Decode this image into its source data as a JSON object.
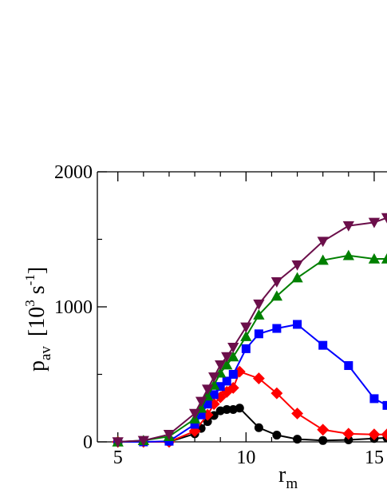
{
  "chart_data": {
    "type": "line",
    "xlabel": {
      "main": "r",
      "sub": "m"
    },
    "ylabel": {
      "main": "p",
      "sub": "av",
      "unit_open": "[10",
      "unit_exp": "3",
      "unit_mid": " s",
      "unit_exp2": "-1",
      "unit_close": "]"
    },
    "xlim": [
      4.2,
      15.5
    ],
    "ylim": [
      0,
      2000
    ],
    "x_ticks": [
      5,
      10,
      15
    ],
    "x_tick_labels": [
      "5",
      "10",
      "15"
    ],
    "y_ticks": [
      0,
      1000,
      2000
    ],
    "y_tick_labels": [
      "0",
      "1000",
      "2000"
    ],
    "grid": false,
    "series": [
      {
        "color": "#000000",
        "marker": "circle",
        "points": [
          [
            5,
            0
          ],
          [
            6,
            0
          ],
          [
            7,
            0
          ],
          [
            8,
            60
          ],
          [
            8.25,
            100
          ],
          [
            8.5,
            150
          ],
          [
            8.75,
            195
          ],
          [
            9,
            230
          ],
          [
            9.25,
            240
          ],
          [
            9.5,
            240
          ],
          [
            9.75,
            250
          ],
          [
            10.5,
            105
          ],
          [
            11.2,
            50
          ],
          [
            12,
            20
          ],
          [
            13,
            10
          ],
          [
            14,
            15
          ],
          [
            15,
            25
          ],
          [
            15.5,
            30
          ]
        ]
      },
      {
        "color": "#ff0000",
        "marker": "diamond",
        "points": [
          [
            5,
            0
          ],
          [
            6,
            0
          ],
          [
            7,
            0
          ],
          [
            8,
            80
          ],
          [
            8.5,
            200
          ],
          [
            8.75,
            280
          ],
          [
            9,
            330
          ],
          [
            9.25,
            370
          ],
          [
            9.5,
            400
          ],
          [
            9.75,
            520
          ],
          [
            10.5,
            470
          ],
          [
            11.2,
            360
          ],
          [
            12,
            210
          ],
          [
            13,
            90
          ],
          [
            14,
            60
          ],
          [
            15,
            55
          ],
          [
            15.5,
            55
          ]
        ]
      },
      {
        "color": "#0000ff",
        "marker": "square",
        "points": [
          [
            5,
            0
          ],
          [
            6,
            0
          ],
          [
            7,
            5
          ],
          [
            8,
            130
          ],
          [
            8.25,
            200
          ],
          [
            8.5,
            280
          ],
          [
            8.75,
            350
          ],
          [
            9,
            410
          ],
          [
            9.25,
            450
          ],
          [
            9.5,
            500
          ],
          [
            10,
            690
          ],
          [
            10.5,
            800
          ],
          [
            11.2,
            840
          ],
          [
            12,
            870
          ],
          [
            13,
            715
          ],
          [
            14,
            565
          ],
          [
            15,
            320
          ],
          [
            15.5,
            270
          ]
        ]
      },
      {
        "color": "#008000",
        "marker": "triangle-up",
        "points": [
          [
            5,
            0
          ],
          [
            6,
            10
          ],
          [
            7,
            40
          ],
          [
            8,
            170
          ],
          [
            8.25,
            250
          ],
          [
            8.5,
            340
          ],
          [
            8.75,
            420
          ],
          [
            9,
            510
          ],
          [
            9.25,
            570
          ],
          [
            9.5,
            630
          ],
          [
            10,
            780
          ],
          [
            10.5,
            940
          ],
          [
            11.2,
            1080
          ],
          [
            12,
            1215
          ],
          [
            13,
            1345
          ],
          [
            14,
            1380
          ],
          [
            15,
            1355
          ],
          [
            15.5,
            1355
          ]
        ]
      },
      {
        "color": "#6b0f4a",
        "marker": "triangle-down",
        "points": [
          [
            5,
            0
          ],
          [
            6,
            10
          ],
          [
            7,
            55
          ],
          [
            8,
            210
          ],
          [
            8.25,
            300
          ],
          [
            8.5,
            390
          ],
          [
            8.75,
            480
          ],
          [
            9,
            570
          ],
          [
            9.25,
            630
          ],
          [
            9.5,
            700
          ],
          [
            10,
            850
          ],
          [
            10.5,
            1020
          ],
          [
            11.2,
            1185
          ],
          [
            12,
            1310
          ],
          [
            13,
            1485
          ],
          [
            14,
            1600
          ],
          [
            15,
            1625
          ],
          [
            15.5,
            1660
          ]
        ]
      }
    ]
  }
}
